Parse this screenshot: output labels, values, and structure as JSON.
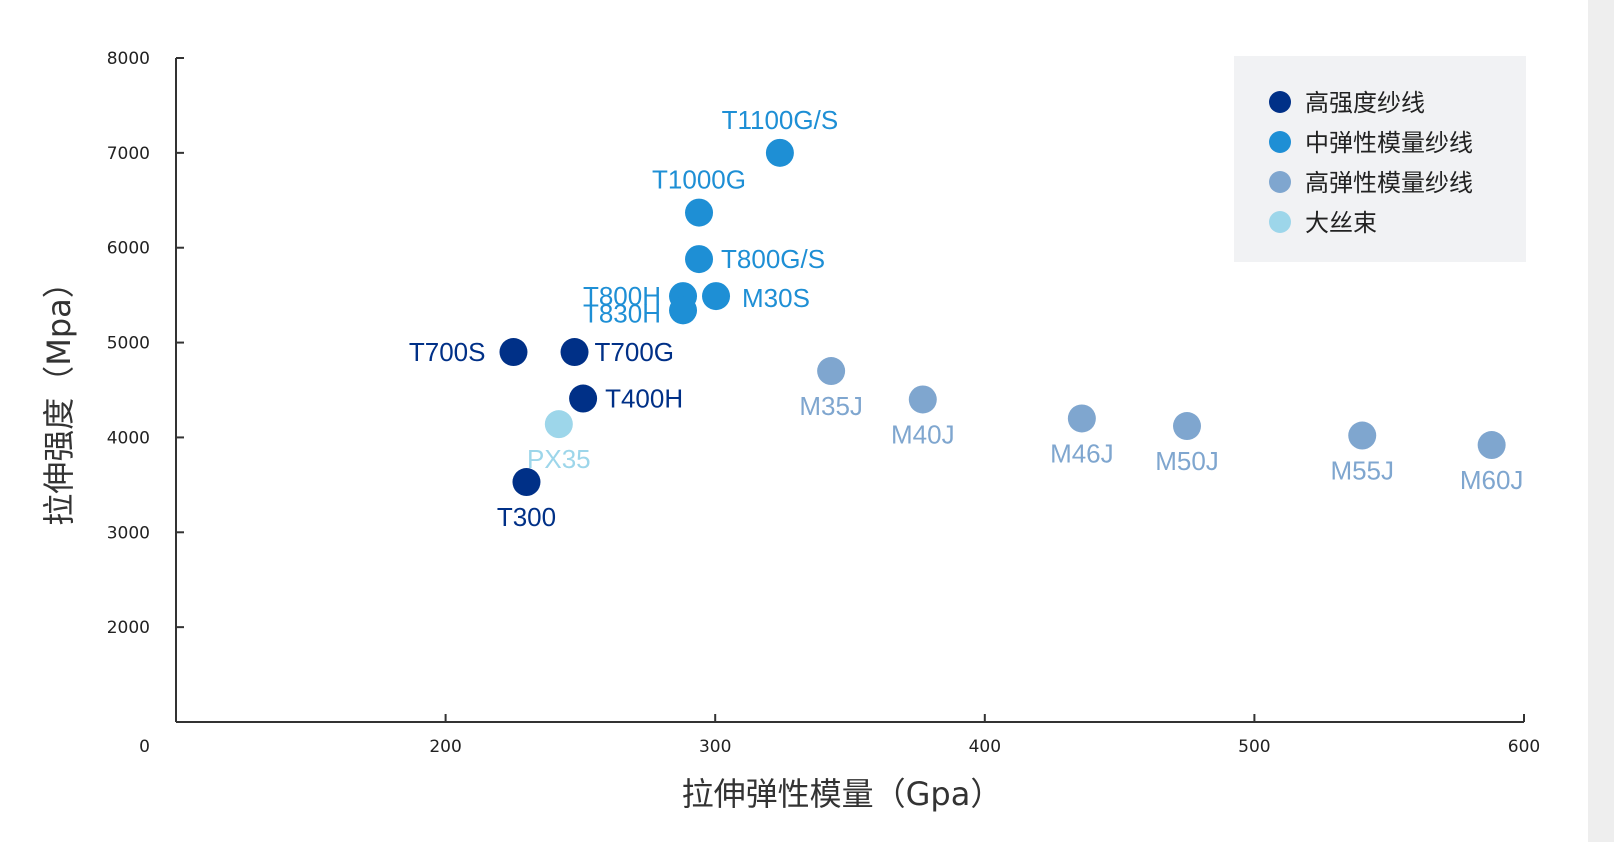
{
  "chart_data": {
    "type": "scatter",
    "xlabel": "拉伸弹性模量（Gpa）",
    "ylabel": "拉伸强度（Mpa）",
    "xlim": [
      100,
      600
    ],
    "ylim": [
      1000,
      8000
    ],
    "x_ticks": [
      200,
      300,
      400,
      500,
      600
    ],
    "y_ticks": [
      2000,
      3000,
      4000,
      5000,
      6000,
      7000,
      8000
    ],
    "origin_label": "0",
    "grid": false,
    "legend_position": "top-right",
    "series": [
      {
        "name": "高强度纱线",
        "color": "#003087",
        "points": [
          {
            "label": "T300",
            "x": 230,
            "y": 3530
          },
          {
            "label": "T700S",
            "x": 230,
            "y": 4900
          },
          {
            "label": "T700G",
            "x": 243,
            "y": 4900
          },
          {
            "label": "T400H",
            "x": 251,
            "y": 4410
          }
        ]
      },
      {
        "name": "中弹性模量纱线",
        "color": "#1e8fd5",
        "points": [
          {
            "label": "T1100G/S",
            "x": 324,
            "y": 7000
          },
          {
            "label": "T1000G",
            "x": 294,
            "y": 6370
          },
          {
            "label": "T800G/S",
            "x": 294,
            "y": 5880
          },
          {
            "label": "T800H",
            "x": 294,
            "y": 5490
          },
          {
            "label": "M30S",
            "x": 294,
            "y": 5490
          },
          {
            "label": "T830H",
            "x": 294,
            "y": 5340
          }
        ]
      },
      {
        "name": "高弹性模量纱线",
        "color": "#7fa6cf",
        "points": [
          {
            "label": "M35J",
            "x": 343,
            "y": 4700
          },
          {
            "label": "M40J",
            "x": 377,
            "y": 4400
          },
          {
            "label": "M46J",
            "x": 436,
            "y": 4200
          },
          {
            "label": "M50J",
            "x": 475,
            "y": 4120
          },
          {
            "label": "M55J",
            "x": 540,
            "y": 4020
          },
          {
            "label": "M60J",
            "x": 588,
            "y": 3920
          }
        ]
      },
      {
        "name": "大丝束",
        "color": "#9dd6ea",
        "points": [
          {
            "label": "PX35",
            "x": 242,
            "y": 4140
          }
        ]
      }
    ]
  }
}
